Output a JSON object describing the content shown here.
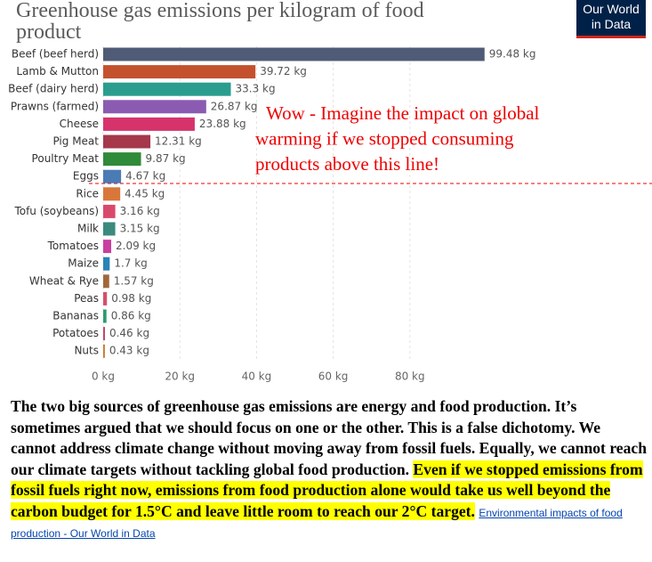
{
  "chart_data": {
    "type": "hbar",
    "title": "Greenhouse gas emissions per kilogram of food product",
    "categories": [
      "Beef (beef herd)",
      "Lamb & Mutton",
      "Beef (dairy herd)",
      "Prawns (farmed)",
      "Cheese",
      "Pig Meat",
      "Poultry Meat",
      "Eggs",
      "Rice",
      "Tofu (soybeans)",
      "Milk",
      "Tomatoes",
      "Maize",
      "Wheat & Rye",
      "Peas",
      "Bananas",
      "Potatoes",
      "Nuts"
    ],
    "values": [
      99.48,
      39.72,
      33.3,
      26.87,
      23.88,
      12.31,
      9.87,
      4.67,
      4.45,
      3.16,
      3.15,
      2.09,
      1.7,
      1.57,
      0.98,
      0.86,
      0.46,
      0.43
    ],
    "value_labels": [
      "99.48 kg",
      "39.72 kg",
      "33.3 kg",
      "26.87 kg",
      "23.88 kg",
      "12.31 kg",
      "9.87 kg",
      "4.67 kg",
      "4.45 kg",
      "3.16 kg",
      "3.15 kg",
      "2.09 kg",
      "1.7 kg",
      "1.57 kg",
      "0.98 kg",
      "0.86 kg",
      "0.46 kg",
      "0.43 kg"
    ],
    "colors": [
      "#4f5b77",
      "#c4512d",
      "#2a9d8f",
      "#8a5bb0",
      "#d6336c",
      "#a5384b",
      "#2f8a3a",
      "#4a7bb5",
      "#d9773b",
      "#d84a6b",
      "#3a8a7d",
      "#c93fa0",
      "#2a83b5",
      "#a0673a",
      "#d4506a",
      "#2e9a70",
      "#c0486a",
      "#c47a2e"
    ],
    "xlim": [
      0,
      100
    ],
    "xticks": [
      {
        "value": 0,
        "label": "0 kg"
      },
      {
        "value": 20,
        "label": "20 kg"
      },
      {
        "value": 40,
        "label": "40 kg"
      },
      {
        "value": 60,
        "label": "60 kg"
      },
      {
        "value": 80,
        "label": "80 kg"
      }
    ],
    "annotation": [
      "Wow - Imagine the impact on global",
      "warming if we stopped consuming",
      "products above this line!"
    ]
  },
  "logo": [
    "Our World",
    "in Data"
  ],
  "paragraph": {
    "text": "The two big sources of greenhouse gas emissions are energy and food production. It’s sometimes argued that we should focus on one or the other. This is a false dichotomy. We cannot address climate change without moving away from fossil fuels. Equally, we cannot reach our climate targets without tackling global food production. ",
    "highlight": "Even if we stopped emissions from fossil fuels right now, emissions from food production alone would take us well beyond the carbon budget for 1.5°C and leave little room to reach our 2°C target.",
    "link": "Environmental impacts of food production - Our World in Data"
  }
}
